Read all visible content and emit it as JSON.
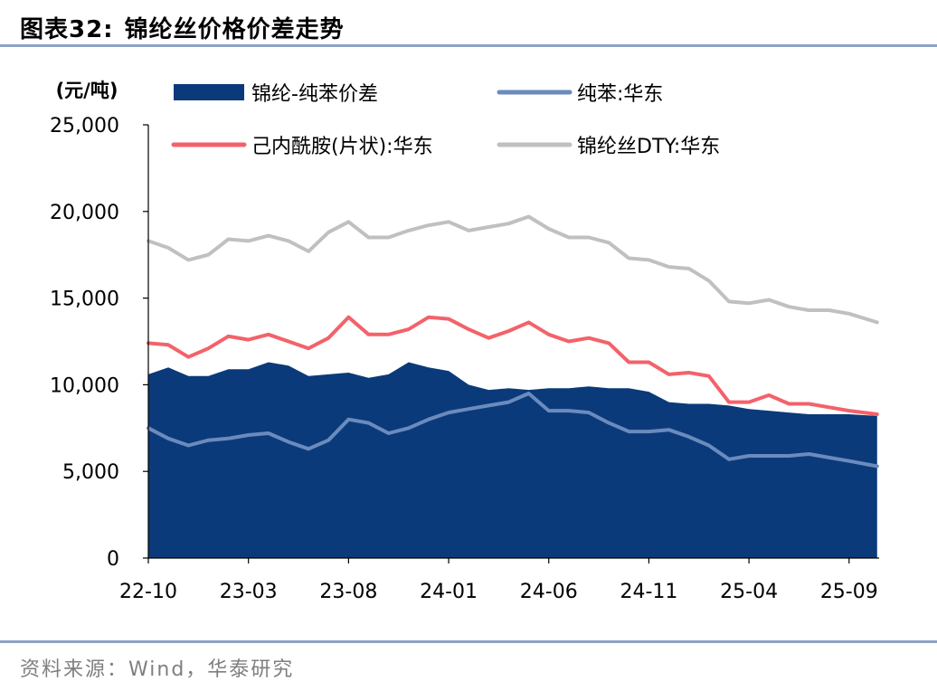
{
  "figure": {
    "label": "图表32:",
    "title": "锦纶丝价格价差走势",
    "source": "资料来源：Wind，华泰研究"
  },
  "chart_data": {
    "type": "line",
    "unit_label": "(元/吨)",
    "ylim": [
      0,
      25000
    ],
    "y_ticks": [
      "25,000",
      "20,000",
      "15,000",
      "10,000",
      "5,000",
      "0"
    ],
    "y_tick_values": [
      25000,
      20000,
      15000,
      10000,
      5000,
      0
    ],
    "x_tick_labels": [
      "22-10",
      "23-03",
      "23-08",
      "24-01",
      "24-06",
      "24-11",
      "25-04",
      "25-09"
    ],
    "x_domain": [
      0,
      36.5
    ],
    "x_tick_positions": [
      0,
      5,
      10,
      15,
      20,
      25,
      30,
      35
    ],
    "x": [
      0,
      1,
      2,
      3,
      4,
      5,
      6,
      7,
      8,
      9,
      10,
      11,
      12,
      13,
      14,
      15,
      16,
      17,
      18,
      19,
      20,
      21,
      22,
      23,
      24,
      25,
      26,
      27,
      28,
      29,
      30,
      31,
      32,
      33,
      34,
      35,
      36.4
    ],
    "legend": [
      {
        "name": "锦纶-纯苯价差",
        "kind": "area",
        "color": "#0b3a7a"
      },
      {
        "name": "纯苯:华东",
        "kind": "line",
        "color": "#6b8bbd"
      },
      {
        "name": "己内酰胺(片状):华东",
        "kind": "line",
        "color": "#f3626a"
      },
      {
        "name": "锦纶丝DTY:华东",
        "kind": "line",
        "color": "#c0c0c0"
      }
    ],
    "series": [
      {
        "name": "锦纶丝DTY:华东",
        "values": [
          18300,
          17900,
          17200,
          17500,
          18400,
          18300,
          18600,
          18300,
          17700,
          18800,
          19400,
          18500,
          18500,
          18900,
          19200,
          19400,
          18900,
          19100,
          19300,
          19700,
          19000,
          18500,
          18500,
          18200,
          17300,
          17200,
          16800,
          16700,
          16000,
          14800,
          14700,
          14900,
          14500,
          14300,
          14300,
          14100,
          13600
        ]
      },
      {
        "name": "己内酰胺(片状):华东",
        "values": [
          12400,
          12300,
          11600,
          12100,
          12800,
          12600,
          12900,
          12500,
          12100,
          12700,
          13900,
          12900,
          12900,
          13200,
          13900,
          13800,
          13200,
          12700,
          13100,
          13600,
          12900,
          12500,
          12700,
          12400,
          11300,
          11300,
          10600,
          10700,
          10500,
          9000,
          9000,
          9400,
          8900,
          8900,
          8700,
          8500,
          8300
        ]
      },
      {
        "name": "纯苯:华东",
        "values": [
          7500,
          6900,
          6500,
          6800,
          6900,
          7100,
          7200,
          6700,
          6300,
          6800,
          8000,
          7800,
          7200,
          7500,
          8000,
          8400,
          8600,
          8800,
          9000,
          9500,
          8500,
          8500,
          8400,
          7800,
          7300,
          7300,
          7400,
          7000,
          6500,
          5700,
          5900,
          5900,
          5900,
          6000,
          5800,
          5600,
          5300
        ]
      },
      {
        "name": "锦纶-纯苯价差",
        "values": [
          10600,
          11000,
          10500,
          10500,
          10900,
          10900,
          11300,
          11100,
          10500,
          10600,
          10700,
          10400,
          10600,
          11300,
          11000,
          10800,
          10000,
          9700,
          9800,
          9700,
          9800,
          9800,
          9900,
          9800,
          9800,
          9600,
          9000,
          8900,
          8900,
          8800,
          8600,
          8500,
          8400,
          8300,
          8300,
          8300,
          8200
        ]
      }
    ]
  }
}
